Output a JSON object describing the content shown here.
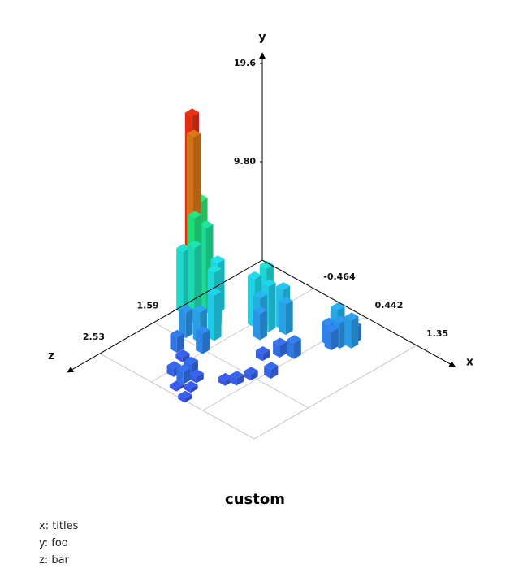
{
  "chart_data": {
    "type": "bar3d",
    "title": "custom",
    "xlabel": "x",
    "ylabel": "y",
    "zlabel": "z",
    "xlim": [
      -1.37,
      1.35
    ],
    "zlim": [
      -0.29,
      2.53
    ],
    "ylim": [
      0,
      19.6
    ],
    "xticks": [
      -0.464,
      0.442,
      1.35
    ],
    "zticks": [
      1.59,
      2.53
    ],
    "yticks": [
      {
        "value": 9.8,
        "label": "9.80"
      },
      19.6
    ],
    "grid": true,
    "x": [
      -1.3,
      -1.22,
      -1.25,
      -1.15,
      -1.1,
      -1.3,
      -1.05,
      -1.0,
      -0.9,
      -0.8,
      -0.35,
      -0.25,
      -0.15,
      -0.3,
      -0.45,
      -0.2,
      -0.05,
      0.55,
      0.65,
      0.75,
      0.5,
      0.6,
      0.7,
      0.45,
      -0.6,
      -0.7,
      -0.5,
      -0.9,
      -0.2,
      -0.1,
      0.0,
      -0.3,
      0.2,
      0.3,
      -0.15,
      0.1,
      -0.4,
      0.35,
      0.5,
      -0.75,
      0.15,
      0.25,
      -0.55,
      0.4
    ],
    "z": [
      1.0,
      1.05,
      0.9,
      1.1,
      0.95,
      1.15,
      1.2,
      0.85,
      1.0,
      1.1,
      0.64,
      0.7,
      0.55,
      0.8,
      0.75,
      0.9,
      0.6,
      0.29,
      0.35,
      0.25,
      0.4,
      0.45,
      0.15,
      0.2,
      1.3,
      1.45,
      1.6,
      1.5,
      2.23,
      2.1,
      2.3,
      2.0,
      1.9,
      1.8,
      2.4,
      2.5,
      2.2,
      1.6,
      1.4,
      1.8,
      1.2,
      1.0,
      1.9,
      0.9
    ],
    "values": [
      19.2,
      17.5,
      10.5,
      9.8,
      8.5,
      6.2,
      7.5,
      5.0,
      4.2,
      5.5,
      5.8,
      4.5,
      4.0,
      3.5,
      4.8,
      2.6,
      3.0,
      3.3,
      2.5,
      2.8,
      2.0,
      1.8,
      1.5,
      2.2,
      4.5,
      3.0,
      2.0,
      2.5,
      1.2,
      0.6,
      0.4,
      0.9,
      0.5,
      0.7,
      0.3,
      0.4,
      0.8,
      0.6,
      0.9,
      1.5,
      0.7,
      1.2,
      0.5,
      1.6
    ],
    "footnotes": [
      "x: titles",
      "y: foo",
      "z: bar"
    ]
  }
}
